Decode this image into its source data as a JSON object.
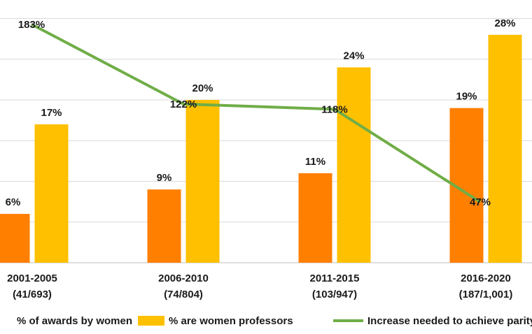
{
  "chart_data": {
    "type": "bar",
    "categories": [
      "2001-2005",
      "2006-2010",
      "2011-2015",
      "2016-2020"
    ],
    "category_sublabels": [
      "(41/693)",
      "(74/804)",
      "(103/947)",
      "(187/1,001)"
    ],
    "series": [
      {
        "name": "% of awards by women",
        "kind": "bar",
        "color": "#ff7f00",
        "values": [
          6,
          9,
          11,
          19
        ],
        "labels": [
          "6%",
          "9%",
          "11%",
          "19%"
        ]
      },
      {
        "name": "% are women professors",
        "kind": "bar",
        "color": "#ffc000",
        "values": [
          17,
          20,
          24,
          28
        ],
        "labels": [
          "17%",
          "20%",
          "24%",
          "28%"
        ]
      },
      {
        "name": "Increase needed to achieve parity",
        "kind": "line",
        "color": "#70ad47",
        "values": [
          183,
          122,
          118,
          47
        ],
        "labels": [
          "183%",
          "122%",
          "118%",
          "47%"
        ]
      }
    ],
    "ylim": [
      0,
      30
    ],
    "line_ylim": [
      0,
      200
    ],
    "grid": true,
    "legend_position": "bottom"
  }
}
